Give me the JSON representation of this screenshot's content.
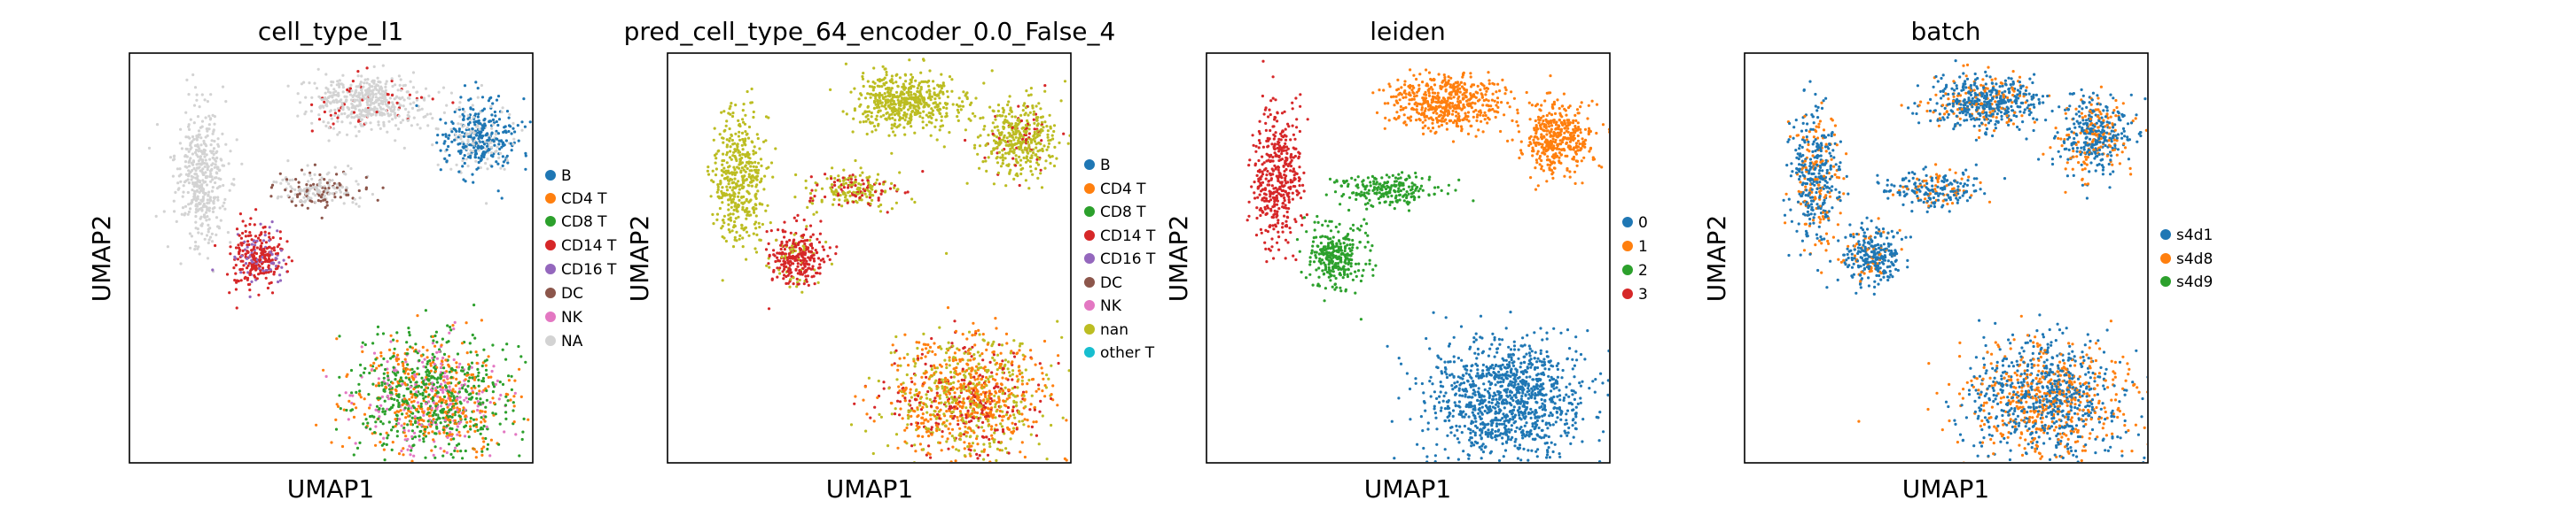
{
  "chart_data": [
    {
      "type": "scatter",
      "title": "cell_type_l1",
      "xlabel": "UMAP1",
      "ylabel": "UMAP2",
      "grid": false,
      "ticks": false,
      "legend_position": "right",
      "legend": [
        {
          "name": "B",
          "color": "#1f77b4"
        },
        {
          "name": "CD4 T",
          "color": "#ff7f0e"
        },
        {
          "name": "CD8 T",
          "color": "#2ca02c"
        },
        {
          "name": "CD14 T",
          "color": "#d62728"
        },
        {
          "name": "CD16 T",
          "color": "#9467bd"
        },
        {
          "name": "DC",
          "color": "#8c564b"
        },
        {
          "name": "NK",
          "color": "#e377c2"
        },
        {
          "name": "NA",
          "color": "#d3d3d3"
        }
      ]
    },
    {
      "type": "scatter",
      "title": "pred_cell_type_64_encoder_0.0_False_4",
      "xlabel": "UMAP1",
      "ylabel": "UMAP2",
      "grid": false,
      "ticks": false,
      "legend_position": "right",
      "legend": [
        {
          "name": "B",
          "color": "#1f77b4"
        },
        {
          "name": "CD4 T",
          "color": "#ff7f0e"
        },
        {
          "name": "CD8 T",
          "color": "#2ca02c"
        },
        {
          "name": "CD14 T",
          "color": "#d62728"
        },
        {
          "name": "CD16 T",
          "color": "#9467bd"
        },
        {
          "name": "DC",
          "color": "#8c564b"
        },
        {
          "name": "NK",
          "color": "#e377c2"
        },
        {
          "name": "nan",
          "color": "#bcbd22"
        },
        {
          "name": "other T",
          "color": "#17becf"
        }
      ]
    },
    {
      "type": "scatter",
      "title": "leiden",
      "xlabel": "UMAP1",
      "ylabel": "UMAP2",
      "grid": false,
      "ticks": false,
      "legend_position": "right",
      "legend": [
        {
          "name": "0",
          "color": "#1f77b4"
        },
        {
          "name": "1",
          "color": "#ff7f0e"
        },
        {
          "name": "2",
          "color": "#2ca02c"
        },
        {
          "name": "3",
          "color": "#d62728"
        }
      ]
    },
    {
      "type": "scatter",
      "title": "batch",
      "xlabel": "UMAP1",
      "ylabel": "UMAP2",
      "grid": false,
      "ticks": false,
      "legend_position": "right",
      "legend": [
        {
          "name": "s4d1",
          "color": "#1f77b4"
        },
        {
          "name": "s4d8",
          "color": "#ff7f0e"
        },
        {
          "name": "s4d9",
          "color": "#2ca02c"
        }
      ]
    }
  ]
}
